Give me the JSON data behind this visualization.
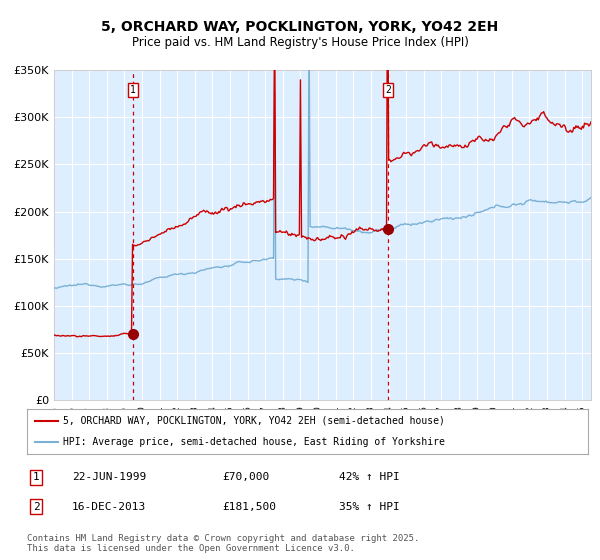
{
  "title": "5, ORCHARD WAY, POCKLINGTON, YORK, YO42 2EH",
  "subtitle": "Price paid vs. HM Land Registry's House Price Index (HPI)",
  "background_color": "#ffffff",
  "plot_bg_color": "#ddeeff",
  "grid_color": "#ffffff",
  "red_line_color": "#cc0000",
  "blue_line_color": "#7ab0d4",
  "marker_color": "#990000",
  "vline_color": "#cc0000",
  "x_start_year": 1995,
  "x_end_year": 2025,
  "y_min": 0,
  "y_max": 350000,
  "y_ticks": [
    0,
    50000,
    100000,
    150000,
    200000,
    250000,
    300000,
    350000
  ],
  "y_tick_labels": [
    "£0",
    "£50K",
    "£100K",
    "£150K",
    "£200K",
    "£250K",
    "£300K",
    "£350K"
  ],
  "sale1_year": 1999.47,
  "sale1_price": 70000,
  "sale1_label": "1",
  "sale1_date": "22-JUN-1999",
  "sale1_hpi_text": "42% ↑ HPI",
  "sale2_year": 2013.96,
  "sale2_price": 181500,
  "sale2_label": "2",
  "sale2_date": "16-DEC-2013",
  "sale2_hpi_text": "35% ↑ HPI",
  "legend_red": "5, ORCHARD WAY, POCKLINGTON, YORK, YO42 2EH (semi-detached house)",
  "legend_blue": "HPI: Average price, semi-detached house, East Riding of Yorkshire",
  "footnote": "Contains HM Land Registry data © Crown copyright and database right 2025.\nThis data is licensed under the Open Government Licence v3.0.",
  "table_row1": [
    "1",
    "22-JUN-1999",
    "£70,000",
    "42% ↑ HPI"
  ],
  "table_row2": [
    "2",
    "16-DEC-2013",
    "£181,500",
    "35% ↑ HPI"
  ]
}
